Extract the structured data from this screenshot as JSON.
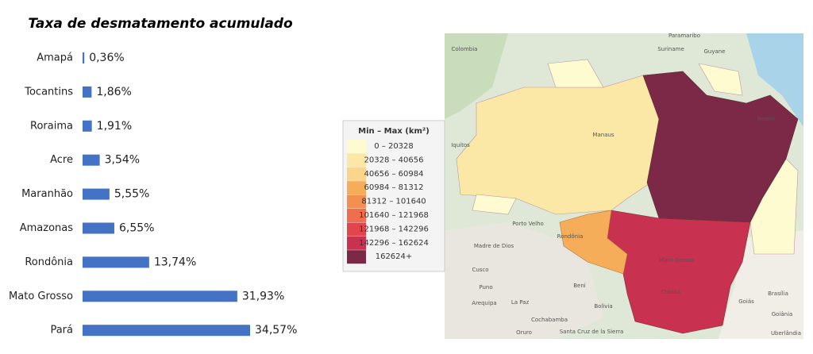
{
  "chart_data": {
    "type": "bar",
    "orientation": "horizontal",
    "title": "Taxa de desmatamento acumulado",
    "categories": [
      "Amapá",
      "Tocantins",
      "Roraima",
      "Acre",
      "Maranhão",
      "Amazonas",
      "Rondônia",
      "Mato Grosso",
      "Pará"
    ],
    "values": [
      0.36,
      1.86,
      1.91,
      3.54,
      5.55,
      6.55,
      13.74,
      31.93,
      34.57
    ],
    "value_labels": [
      "0,36%",
      "1,86%",
      "1,91%",
      "3,54%",
      "5,55%",
      "6,55%",
      "13,74%",
      "31,93%",
      "34,57%"
    ],
    "color": "#4472c4"
  },
  "map": {
    "legend_title": "Min – Max (km²)",
    "legend": [
      {
        "label": "0 – 20328",
        "color": "#fefbd0"
      },
      {
        "label": "20328 – 40656",
        "color": "#fbe8a6"
      },
      {
        "label": "40656 – 60984",
        "color": "#fad58a"
      },
      {
        "label": "60984 – 81312",
        "color": "#f6ad5a"
      },
      {
        "label": "81312 – 101640",
        "color": "#f4904f"
      },
      {
        "label": "101640 – 121968",
        "color": "#ee6e4e"
      },
      {
        "label": "121968 – 142296",
        "color": "#e2454c"
      },
      {
        "label": "142296 – 162624",
        "color": "#c8314f"
      },
      {
        "label": "162624+",
        "color": "#7b2946"
      }
    ],
    "places": [
      "Colombia",
      "Paramaribo",
      "Suriname",
      "Guyane",
      "Iquitos",
      "Manaus",
      "Belém",
      "Porto Velho",
      "Rondônia",
      "Madre de Dios",
      "Cusco",
      "Beni",
      "Mato Grosso",
      "Cuiabá",
      "Puno",
      "Arequipa",
      "La Paz",
      "Bolivia",
      "Cochabamba",
      "Oruro",
      "Santa Cruz de la Sierra",
      "Goiás",
      "Brasília",
      "Goiânia",
      "Uberlândia"
    ]
  }
}
